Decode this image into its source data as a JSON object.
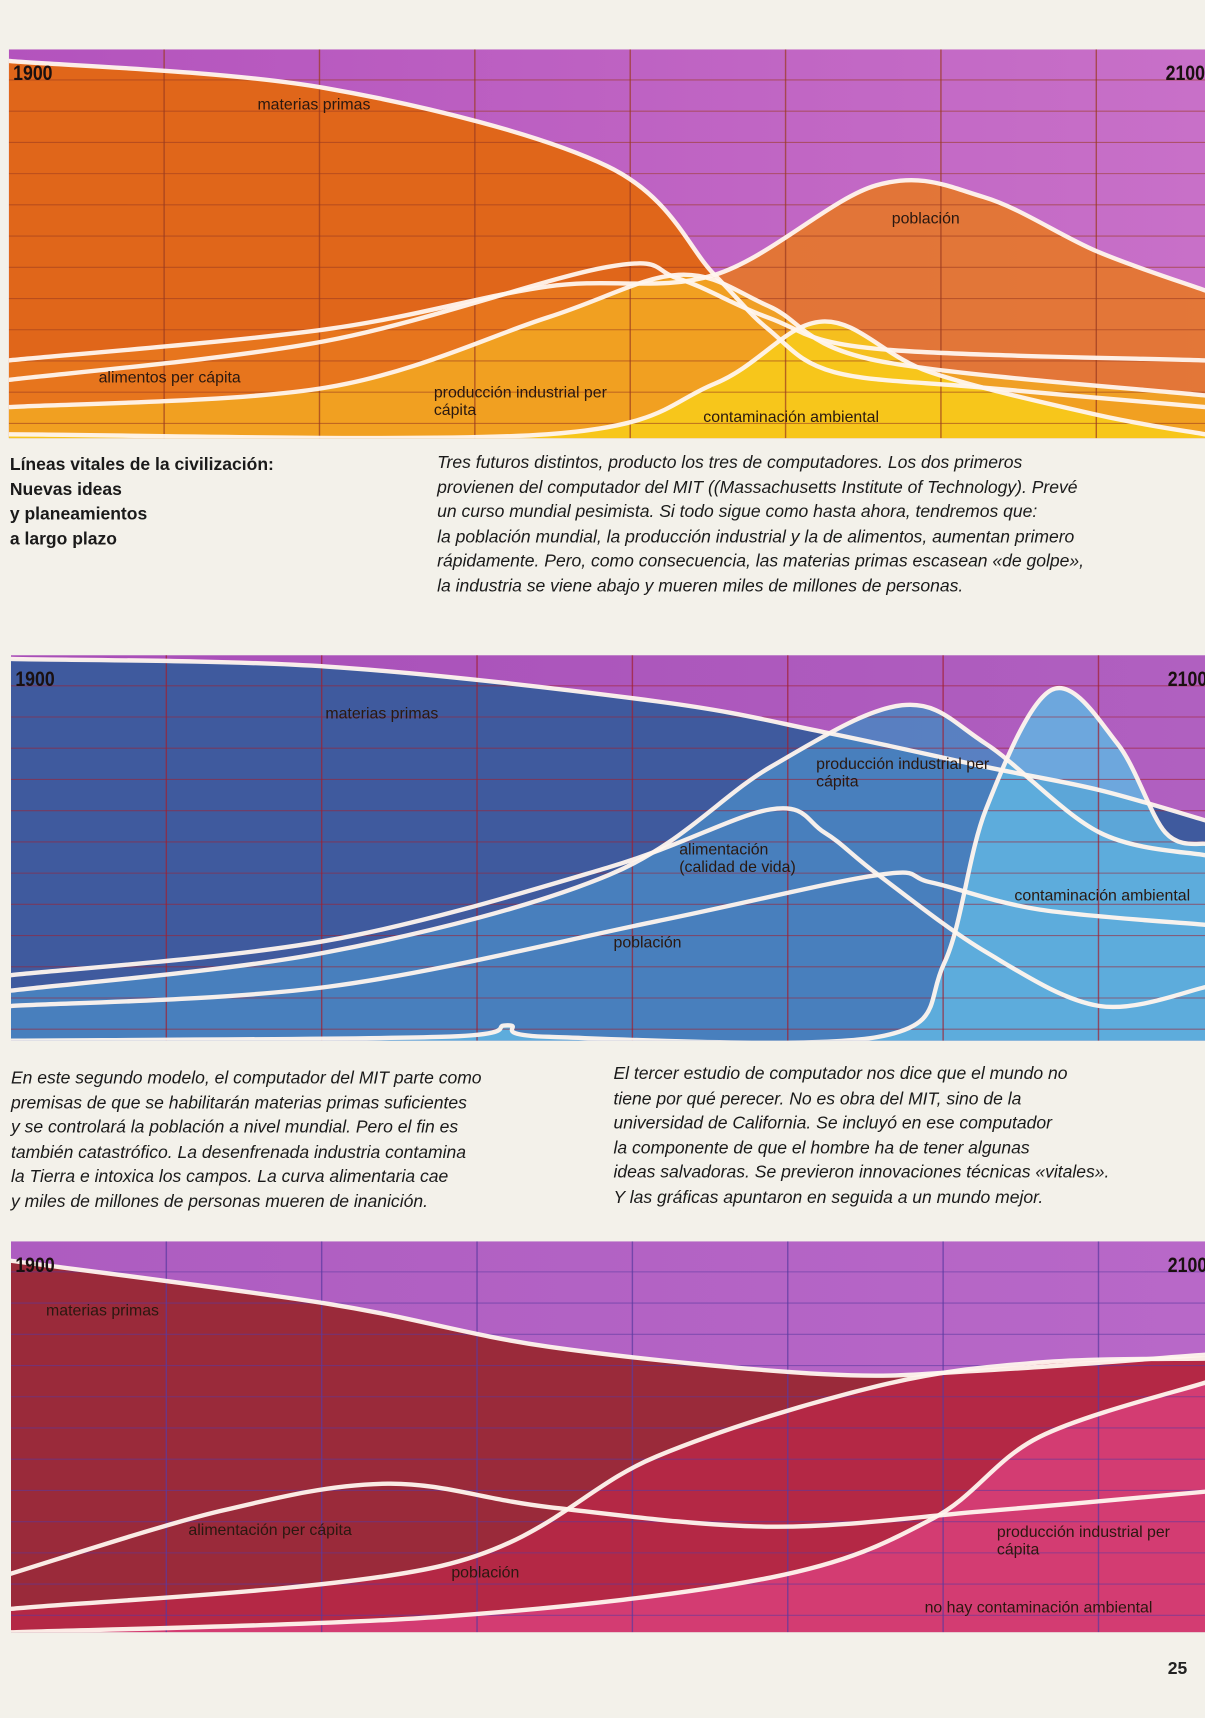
{
  "title_lines": [
    "Líneas vitales de la civilización:",
    "Nuevas ideas",
    "y planeamientos",
    "a largo plazo"
  ],
  "intro_lines": [
    "Tres futuros distintos, producto los tres de computadores. Los dos primeros",
    "provienen del computador del MIT ((Massachusetts Institute of Technology). Prevé",
    "un curso mundial pesimista. Si todo sigue como hasta ahora, tendremos que:",
    "la población mundial, la producción industrial y la de alimentos, aumentan primero",
    "rápidamente. Pero, como consecuencia, las materias primas escasean «de golpe»,",
    "la industria se viene abajo y mueren miles de millones de personas."
  ],
  "second_lines": [
    "En este segundo modelo, el computador del MIT parte como",
    "premisas de que se habilitarán materias primas suficientes",
    "y se controlará la población a nivel mundial. Pero el fin es",
    "también catastrófico. La desenfrenada industria contamina",
    "la Tierra e intoxica los campos. La curva alimentaria cae",
    "y miles de millones de personas mueren de inanición."
  ],
  "third_lines": [
    "El tercer estudio de computador nos dice que el mundo no",
    "tiene por qué perecer. No es obra del MIT, sino de la",
    "universidad de California. Se incluyó en ese computador",
    "la componente de que el hombre ha de tener algunas",
    "ideas salvadoras. Se previeron innovaciones técnicas «vitales».",
    "Y las gráficas apuntaron en seguida a un mundo mejor."
  ],
  "page_number": "25",
  "chart_data": [
    {
      "type": "line",
      "xlim": [
        1900,
        2100
      ],
      "ylim": [
        0,
        100
      ],
      "start_label": "1900",
      "end_label": "2100",
      "grid": true,
      "colors": {
        "bg_top": "#b353bd",
        "bg_bottom": "#c870c8",
        "grid": "#9a3a20"
      },
      "series": [
        {
          "name": "materias primas",
          "fill": "#e0661a",
          "points": [
            [
              1900,
              97
            ],
            [
              1953,
              90
            ],
            [
              2000,
              70
            ],
            [
              2018,
              42
            ],
            [
              2027,
              28
            ],
            [
              2038,
              17
            ],
            [
              2063,
              13
            ],
            [
              2100,
              8
            ]
          ]
        },
        {
          "name": "población",
          "fill": "#e8781e",
          "points": [
            [
              1900,
              20
            ],
            [
              1953,
              28
            ],
            [
              1990,
              39
            ],
            [
              2018,
              42
            ],
            [
              2045,
              65
            ],
            [
              2063,
              62
            ],
            [
              2082,
              48
            ],
            [
              2100,
              38
            ]
          ]
        },
        {
          "name": "alimentos per cápita",
          "fill": null,
          "points": [
            [
              1900,
              15
            ],
            [
              1953,
              25
            ],
            [
              2000,
              44
            ],
            [
              2012,
              41
            ],
            [
              2027,
              31
            ],
            [
              2045,
              23
            ],
            [
              2100,
              20
            ]
          ]
        },
        {
          "name": "producción industrial per cápita",
          "fill": "#f2a822",
          "points": [
            [
              1900,
              8
            ],
            [
              1953,
              13
            ],
            [
              1990,
              31
            ],
            [
              2012,
              42
            ],
            [
              2027,
              34
            ],
            [
              2045,
              20
            ],
            [
              2100,
              11
            ]
          ]
        },
        {
          "name": "contaminación ambiental",
          "fill": "#f8cc1a",
          "points": [
            [
              1900,
              1
            ],
            [
              1990,
              1
            ],
            [
              2018,
              14
            ],
            [
              2036,
              30
            ],
            [
              2054,
              17
            ],
            [
              2082,
              6
            ],
            [
              2100,
              1
            ]
          ]
        }
      ]
    },
    {
      "type": "line",
      "xlim": [
        1900,
        2100
      ],
      "ylim": [
        0,
        100
      ],
      "start_label": "1900",
      "end_label": "2100",
      "grid": true,
      "colors": {
        "bg_top": "#a84db8",
        "bg_bottom": "#b060c0",
        "grid": "#a02030"
      },
      "series": [
        {
          "name": "materias primas",
          "fill": "#3f5a9e",
          "points": [
            [
              1900,
              99
            ],
            [
              1953,
              97
            ],
            [
              2008,
              88
            ],
            [
              2036,
              80
            ],
            [
              2063,
              71
            ],
            [
              2082,
              65
            ],
            [
              2100,
              57
            ]
          ]
        },
        {
          "name": "producción industrial per cápita",
          "fill": "#4a86c2",
          "points": [
            [
              1900,
              13
            ],
            [
              1953,
              23
            ],
            [
              2000,
              43
            ],
            [
              2027,
              71
            ],
            [
              2049,
              87
            ],
            [
              2063,
              77
            ],
            [
              2082,
              54
            ],
            [
              2100,
              48
            ]
          ]
        },
        {
          "name": "alimentación (calidad de vida)",
          "fill": null,
          "points": [
            [
              1900,
              17
            ],
            [
              1953,
              26
            ],
            [
              2000,
              45
            ],
            [
              2027,
              60
            ],
            [
              2036,
              54
            ],
            [
              2045,
              43
            ],
            [
              2063,
              23
            ],
            [
              2082,
              9
            ],
            [
              2100,
              14
            ]
          ]
        },
        {
          "name": "población",
          "fill": null,
          "points": [
            [
              1900,
              9
            ],
            [
              1953,
              14
            ],
            [
              2008,
              31
            ],
            [
              2045,
              43
            ],
            [
              2054,
              41
            ],
            [
              2072,
              34
            ],
            [
              2100,
              30
            ]
          ]
        },
        {
          "name": "contaminación ambiental",
          "fill": "#62b4e2",
          "points": [
            [
              1900,
              0
            ],
            [
              1972,
              1
            ],
            [
              1983,
              4
            ],
            [
              1990,
              1
            ],
            [
              2045,
              1
            ],
            [
              2056,
              20
            ],
            [
              2063,
              60
            ],
            [
              2074,
              91
            ],
            [
              2085,
              77
            ],
            [
              2093,
              54
            ],
            [
              2100,
              51
            ]
          ]
        }
      ]
    },
    {
      "type": "line",
      "xlim": [
        1900,
        2100
      ],
      "ylim": [
        0,
        100
      ],
      "start_label": "1900",
      "end_label": "2100",
      "grid": true,
      "colors": {
        "bg_top": "#ad5cc0",
        "bg_bottom": "#b868c8",
        "grid": "#5a3aa0"
      },
      "series": [
        {
          "name": "materias primas",
          "fill": "#9a2a3a",
          "points": [
            [
              1900,
              95
            ],
            [
              1953,
              84
            ],
            [
              1990,
              73
            ],
            [
              2036,
              66
            ],
            [
              2063,
              67
            ],
            [
              2100,
              71
            ]
          ]
        },
        {
          "name": "alimentación per cápita",
          "fill": null,
          "points": [
            [
              1900,
              15
            ],
            [
              1935,
              31
            ],
            [
              1963,
              38
            ],
            [
              1990,
              32
            ],
            [
              2027,
              27
            ],
            [
              2063,
              31
            ],
            [
              2100,
              36
            ]
          ]
        },
        {
          "name": "población",
          "fill": "#b82848",
          "points": [
            [
              1900,
              6
            ],
            [
              1972,
              17
            ],
            [
              2008,
              45
            ],
            [
              2045,
              63
            ],
            [
              2072,
              69
            ],
            [
              2100,
              70
            ]
          ]
        },
        {
          "name": "producción industrial per cápita",
          "fill": "#d8407a",
          "points": [
            [
              1900,
              0
            ],
            [
              1972,
              4
            ],
            [
              2027,
              14
            ],
            [
              2054,
              29
            ],
            [
              2072,
              50
            ],
            [
              2100,
              64
            ]
          ]
        },
        {
          "name": "no hay contaminación ambiental",
          "fill": null,
          "points": [
            [
              1900,
              0
            ],
            [
              2100,
              0
            ]
          ]
        }
      ]
    }
  ]
}
